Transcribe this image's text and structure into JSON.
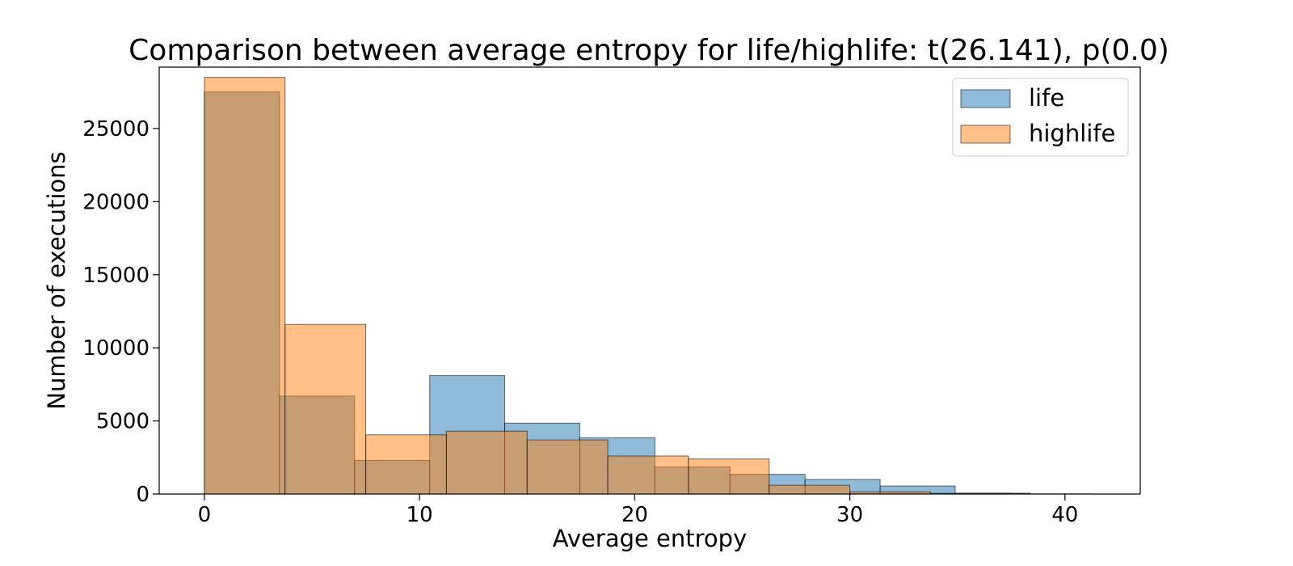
{
  "chart_data": {
    "type": "bar",
    "title": "Comparison between average entropy for life/highlife: t(26.141), p(0.0)",
    "xlabel": "Average entropy",
    "ylabel": "Number of executions",
    "xlim": [
      -2.1,
      43.5
    ],
    "ylim": [
      0,
      29200
    ],
    "xticks": [
      0,
      10,
      20,
      30,
      40
    ],
    "yticks": [
      0,
      5000,
      10000,
      15000,
      20000,
      25000
    ],
    "legend_position": "top-right",
    "grid": false,
    "series": [
      {
        "name": "life",
        "color": "#1f77b4",
        "bin_edges": [
          0,
          3.49,
          6.98,
          10.47,
          13.96,
          17.45,
          20.94,
          24.43,
          27.92,
          31.41,
          34.9,
          38.39
        ],
        "counts": [
          27500,
          6700,
          2300,
          8100,
          4850,
          3850,
          1850,
          1350,
          1000,
          550,
          60
        ]
      },
      {
        "name": "highlife",
        "color": "#ff7f0e",
        "bin_edges": [
          0,
          3.75,
          7.5,
          11.25,
          15.0,
          18.75,
          22.5,
          26.25,
          30.0,
          33.75,
          37.5,
          41.25
        ],
        "counts": [
          28500,
          11600,
          4050,
          4300,
          3700,
          2600,
          2400,
          600,
          150,
          50,
          10
        ]
      }
    ]
  }
}
